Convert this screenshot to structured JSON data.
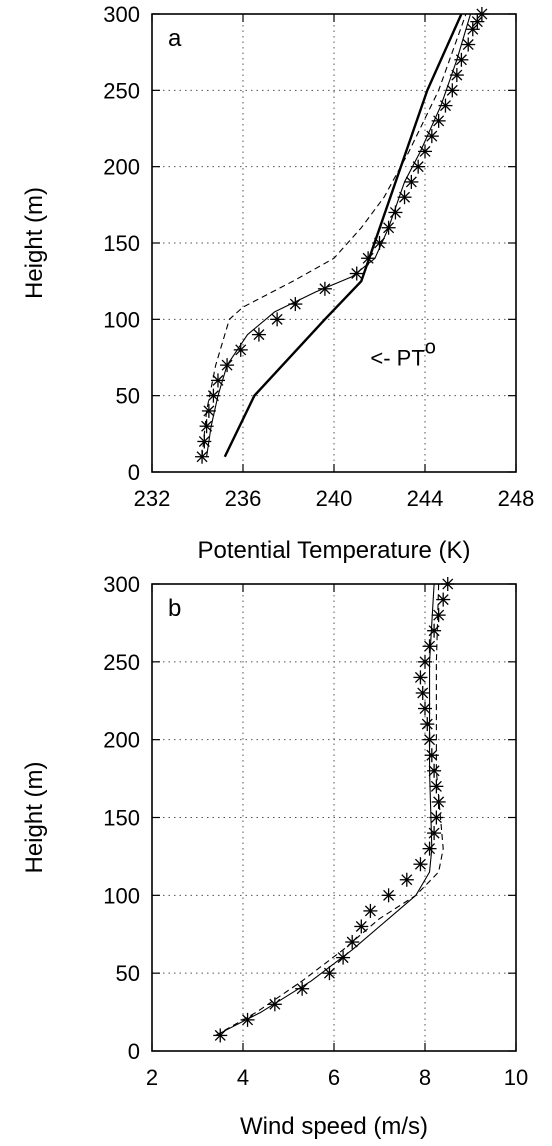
{
  "chart_data": [
    {
      "type": "line",
      "panel_label": "a",
      "xlabel": "Potential Temperature (K)",
      "ylabel": "Height (m)",
      "xlim": [
        232,
        248
      ],
      "ylim": [
        0,
        300
      ],
      "xticks": [
        232,
        236,
        240,
        244,
        248
      ],
      "yticks": [
        0,
        50,
        100,
        150,
        200,
        250,
        300
      ],
      "grid": true,
      "annotation": {
        "text": "<- PT",
        "superscript": "o",
        "x": 241.6,
        "y": 75
      },
      "series": [
        {
          "style": "thick-solid",
          "x": [
            235.2,
            236.5,
            239.6,
            241.2,
            244.1,
            245.6
          ],
          "y": [
            10,
            50,
            100,
            125,
            250,
            300
          ]
        },
        {
          "style": "solid",
          "x": [
            234.4,
            234.6,
            234.9,
            235.3,
            236.2,
            237.4,
            239.2,
            240.8,
            241.8,
            242.4,
            243.1,
            243.8,
            244.7,
            245.4,
            246.0
          ],
          "y": [
            10,
            30,
            50,
            70,
            90,
            105,
            118,
            128,
            140,
            160,
            190,
            210,
            240,
            270,
            300
          ]
        },
        {
          "style": "dashed",
          "x": [
            234.2,
            234.4,
            234.8,
            235.4,
            236.0,
            238.2,
            240.0,
            241.2,
            242.2,
            243.3,
            244.6,
            245.8
          ],
          "y": [
            10,
            40,
            70,
            100,
            108,
            125,
            140,
            160,
            180,
            210,
            250,
            300
          ]
        },
        {
          "style": "markers-star",
          "x": [
            234.2,
            234.3,
            234.4,
            234.5,
            234.7,
            234.9,
            235.3,
            235.9,
            236.7,
            237.5,
            238.3,
            239.6,
            241.0,
            241.5,
            242.0,
            242.4,
            242.7,
            243.1,
            243.4,
            243.7,
            244.0,
            244.3,
            244.6,
            244.9,
            245.2,
            245.4,
            245.6,
            245.9,
            246.1,
            246.3,
            246.5
          ],
          "y": [
            10,
            20,
            30,
            40,
            50,
            60,
            70,
            80,
            90,
            100,
            110,
            120,
            130,
            140,
            150,
            160,
            170,
            180,
            190,
            200,
            210,
            220,
            230,
            240,
            250,
            260,
            270,
            280,
            290,
            295,
            300
          ]
        }
      ]
    },
    {
      "type": "line",
      "panel_label": "b",
      "xlabel": "Wind speed (m/s)",
      "ylabel": "Height (m)",
      "xlim": [
        2,
        10
      ],
      "ylim": [
        0,
        300
      ],
      "xticks": [
        2,
        4,
        6,
        8,
        10
      ],
      "yticks": [
        0,
        50,
        100,
        150,
        200,
        250,
        300
      ],
      "grid": true,
      "series": [
        {
          "style": "solid",
          "x": [
            3.4,
            4.4,
            5.5,
            6.4,
            7.2,
            7.8,
            8.1,
            8.15,
            8.1,
            8.1,
            8.2
          ],
          "y": [
            10,
            25,
            45,
            65,
            85,
            100,
            115,
            130,
            180,
            250,
            300
          ]
        },
        {
          "style": "dashed",
          "x": [
            3.4,
            4.3,
            5.3,
            6.2,
            7.0,
            7.8,
            8.3,
            8.4,
            8.25,
            8.25,
            8.3
          ],
          "y": [
            10,
            25,
            45,
            65,
            85,
            100,
            115,
            130,
            180,
            250,
            300
          ]
        },
        {
          "style": "markers-star",
          "x": [
            3.5,
            4.1,
            4.7,
            5.3,
            5.9,
            6.2,
            6.4,
            6.6,
            6.8,
            7.2,
            7.6,
            7.9,
            8.1,
            8.2,
            8.25,
            8.3,
            8.25,
            8.2,
            8.15,
            8.1,
            8.05,
            8.0,
            7.95,
            7.9,
            8.0,
            8.1,
            8.2,
            8.3,
            8.4,
            8.5
          ],
          "y": [
            10,
            20,
            30,
            40,
            50,
            60,
            70,
            80,
            90,
            100,
            110,
            120,
            130,
            140,
            150,
            160,
            170,
            180,
            190,
            200,
            210,
            220,
            230,
            240,
            250,
            260,
            270,
            280,
            290,
            300
          ]
        }
      ]
    }
  ]
}
